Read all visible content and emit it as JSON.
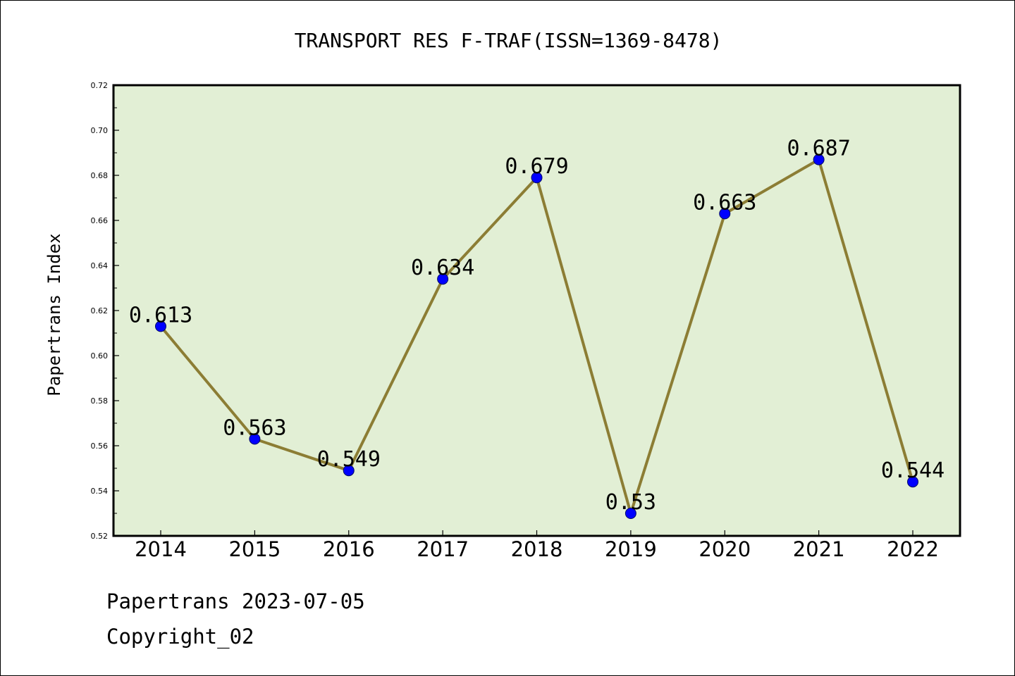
{
  "chart_data": {
    "type": "line",
    "title": "TRANSPORT RES F-TRAF(ISSN=1369-8478)",
    "xlabel": "",
    "ylabel": "Papertrans Index",
    "categories": [
      "2014",
      "2015",
      "2016",
      "2017",
      "2018",
      "2019",
      "2020",
      "2021",
      "2022"
    ],
    "series": [
      {
        "values": [
          0.613,
          0.563,
          0.549,
          0.634,
          0.679,
          0.53,
          0.663,
          0.687,
          0.544
        ],
        "data_labels": [
          "0.613",
          "0.563",
          "0.549",
          "0.634",
          "0.679",
          "0.53",
          "0.663",
          "0.687",
          "0.544"
        ]
      }
    ],
    "ylim": [
      0.52,
      0.72
    ],
    "yticks": [
      "0.52",
      "0.54",
      "0.56",
      "0.58",
      "0.60",
      "0.62",
      "0.64",
      "0.66",
      "0.68",
      "0.70",
      "0.72"
    ],
    "grid": false,
    "colors": {
      "plot_background": "#e2efd5",
      "line": "#8c7d34",
      "marker": "#0000ff"
    }
  },
  "footer": {
    "date_line": "Papertrans 2023-07-05",
    "copyright": "Copyright_02"
  }
}
